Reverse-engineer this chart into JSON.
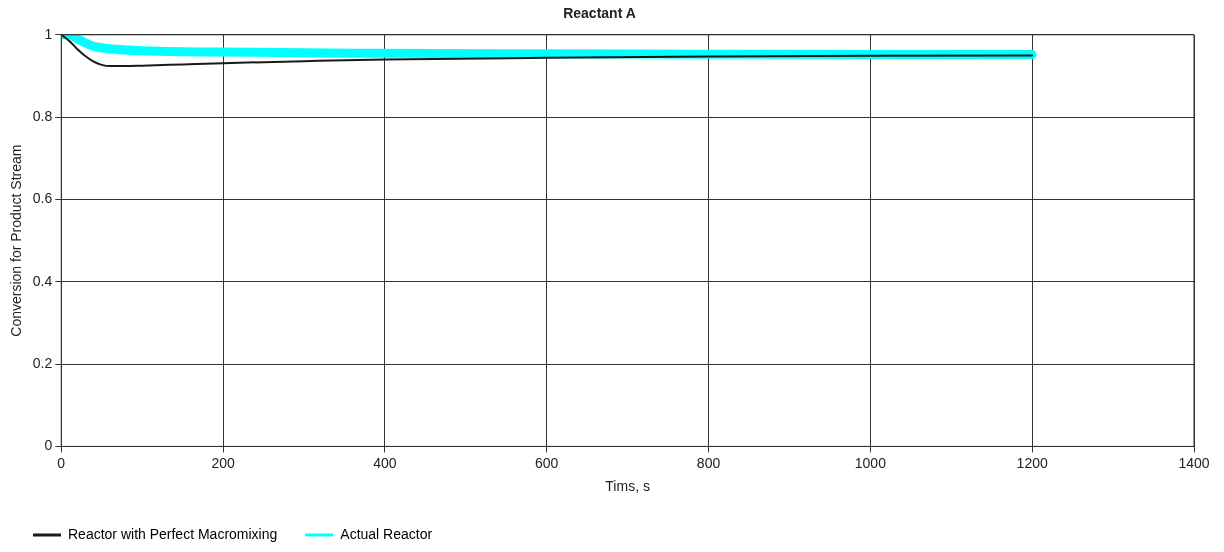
{
  "chart_data": {
    "type": "line",
    "title": "Reactant A",
    "xlabel": "Tims, s",
    "ylabel": "Conversion for Product Stream",
    "xlim": [
      0,
      1400
    ],
    "xticks": [
      0,
      200,
      400,
      600,
      800,
      1000,
      1200,
      1400
    ],
    "ylim": [
      0,
      1
    ],
    "yticks": [
      0,
      0.2,
      0.4,
      0.6,
      0.8,
      1
    ],
    "grid": true,
    "legend": "bottom left",
    "marker": "none",
    "line_style": "solid",
    "series": [
      {
        "name": "Reactor with Perfect Macromixing",
        "color": "#1a1a1a",
        "x": [
          0,
          10,
          20,
          30,
          40,
          50,
          60,
          80,
          100,
          150,
          200,
          300,
          400,
          600,
          800,
          1000,
          1200
        ],
        "values": [
          1,
          0.985,
          0.965,
          0.948,
          0.935,
          0.927,
          0.924,
          0.924,
          0.925,
          0.928,
          0.931,
          0.936,
          0.94,
          0.944,
          0.947,
          0.949,
          0.95
        ]
      },
      {
        "name": "Actual Reactor",
        "color": "#00ffff",
        "x": [
          0,
          10,
          20,
          30,
          40,
          60,
          100,
          200,
          400,
          600,
          800,
          1000,
          1200
        ],
        "values": [
          1,
          1,
          0.99,
          0.98,
          0.972,
          0.966,
          0.961,
          0.958,
          0.955,
          0.954,
          0.953,
          0.952,
          0.952
        ]
      }
    ]
  }
}
